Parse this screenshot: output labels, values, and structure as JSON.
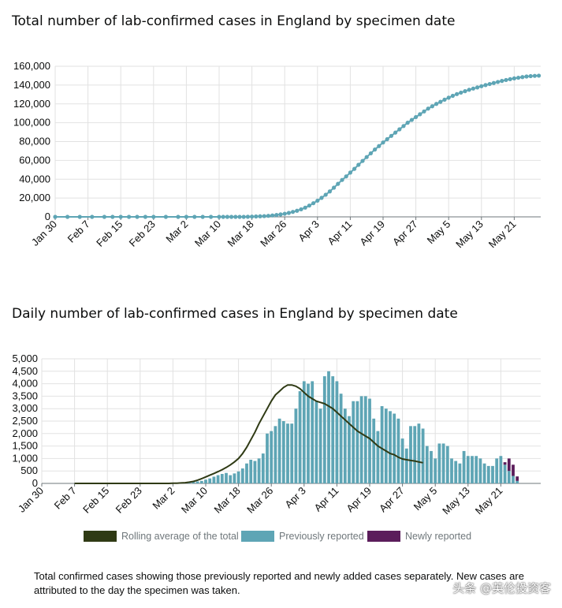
{
  "colors": {
    "line": "#5ea5b5",
    "grid": "#e2e2e2",
    "axis": "#6f777b",
    "previously": "#5ea5b5",
    "newly": "#5b1d5b",
    "rolling": "#2f3a14"
  },
  "chart_data": [
    {
      "type": "line",
      "title": "Total number of lab-confirmed cases in England by specimen date",
      "x_start": "Jan 30",
      "x_tick_labels": [
        "Jan 30",
        "Feb 7",
        "Feb 15",
        "Feb 23",
        "Mar 2",
        "Mar 10",
        "Mar 18",
        "Mar 26",
        "Apr 3",
        "Apr 11",
        "Apr 19",
        "Apr 27",
        "May 5",
        "May 13",
        "May 21"
      ],
      "y_tick_labels": [
        "0",
        "20,000",
        "40,000",
        "60,000",
        "80,000",
        "100,000",
        "120,000",
        "140,000",
        "160,000"
      ],
      "ylim": [
        0,
        160000
      ],
      "day_offsets": [
        0,
        3,
        6,
        9,
        12,
        14,
        16,
        18,
        20,
        22,
        24,
        27,
        30,
        32,
        34,
        36,
        38,
        40,
        41,
        42,
        43,
        44,
        45,
        46,
        47,
        48,
        49,
        50,
        51,
        52,
        53,
        54,
        55,
        56,
        57,
        58,
        59,
        60,
        61,
        62,
        63,
        64,
        65,
        66,
        67,
        68,
        69,
        70,
        71,
        72,
        73,
        74,
        75,
        76,
        77,
        78,
        79,
        80,
        81,
        82,
        83,
        84,
        85,
        86,
        87,
        88,
        89,
        90,
        91,
        92,
        93,
        94,
        95,
        96,
        97,
        98,
        99,
        100,
        101,
        102,
        103,
        104,
        105,
        106,
        107,
        108,
        109,
        110,
        111,
        112,
        113,
        114,
        115,
        116,
        117,
        118
      ],
      "values": [
        0,
        0,
        0,
        0,
        0,
        0,
        0,
        0,
        0,
        0,
        0,
        0,
        0,
        0,
        0,
        0,
        0,
        0,
        0,
        0,
        0,
        0,
        0,
        0,
        100,
        250,
        400,
        600,
        800,
        1100,
        1500,
        2000,
        2600,
        3300,
        4200,
        5300,
        6500,
        8000,
        9800,
        12000,
        14500,
        17200,
        20200,
        23500,
        27000,
        31000,
        35100,
        39200,
        43000,
        47000,
        51000,
        55300,
        59400,
        63500,
        67500,
        71500,
        75200,
        79000,
        82500,
        86000,
        89500,
        93000,
        96500,
        100000,
        103000,
        106000,
        109000,
        112000,
        115000,
        117500,
        120000,
        122200,
        124500,
        126600,
        128600,
        130400,
        132000,
        133500,
        135000,
        136300,
        137500,
        138800,
        140000,
        141100,
        142200,
        143300,
        144400,
        145400,
        146300,
        147100,
        147800,
        148500,
        149100,
        149500,
        149800,
        150000
      ]
    },
    {
      "type": "bar",
      "title": "Daily number of lab-confirmed cases in England by specimen date",
      "x_start": "Jan 30",
      "x_tick_labels": [
        "Jan 30",
        "Feb 7",
        "Feb 15",
        "Feb 23",
        "Mar 2",
        "Mar 10",
        "Mar 18",
        "Mar 26",
        "Apr 3",
        "Apr 11",
        "Apr 19",
        "Apr 27",
        "May 5",
        "May 13",
        "May 21"
      ],
      "y_tick_labels": [
        "0",
        "500",
        "1,000",
        "1,500",
        "2,000",
        "2,500",
        "3,000",
        "3,500",
        "4,000",
        "4,500",
        "5,000"
      ],
      "ylim": [
        0,
        5000
      ],
      "bar_start_day": 34,
      "series": [
        {
          "name": "Previously reported",
          "values": [
            20,
            30,
            50,
            60,
            80,
            100,
            150,
            200,
            270,
            330,
            380,
            420,
            330,
            400,
            480,
            600,
            800,
            950,
            900,
            1000,
            1200,
            2000,
            2100,
            2300,
            2600,
            2500,
            2400,
            2400,
            3000,
            3700,
            4100,
            4000,
            4100,
            3300,
            3000,
            4300,
            4500,
            4300,
            4100,
            3600,
            3000,
            2700,
            3300,
            3300,
            3500,
            3500,
            3400,
            2600,
            2100,
            3100,
            3000,
            2900,
            2800,
            2600,
            1800,
            1400,
            2300,
            2300,
            2400,
            2200,
            1500,
            1300,
            1000,
            1600,
            1600,
            1500,
            1000,
            900,
            800,
            1300,
            1100,
            1100,
            1100,
            1000,
            800,
            700,
            700,
            1000,
            1100,
            750,
            500,
            300,
            100
          ],
          "new": [
            0,
            0,
            0,
            0,
            0,
            0,
            0,
            0,
            0,
            0,
            0,
            0,
            0,
            0,
            0,
            0,
            0,
            0,
            0,
            0,
            0,
            0,
            0,
            0,
            0,
            0,
            0,
            0,
            0,
            0,
            0,
            0,
            0,
            0,
            0,
            0,
            0,
            0,
            0,
            0,
            0,
            0,
            0,
            0,
            0,
            0,
            0,
            0,
            0,
            0,
            0,
            0,
            0,
            0,
            0,
            0,
            0,
            0,
            0,
            0,
            0,
            0,
            0,
            0,
            0,
            0,
            0,
            0,
            0,
            0,
            0,
            0,
            0,
            0,
            0,
            0,
            0,
            0,
            0,
            100,
            500,
            450,
            180
          ]
        },
        {
          "name": "Rolling average of the total",
          "start_day": 8,
          "values": [
            0,
            0,
            0,
            0,
            0,
            0,
            0,
            0,
            0,
            0,
            0,
            0,
            0,
            0,
            0,
            0,
            0,
            0,
            0,
            0,
            0,
            0,
            0,
            0,
            5,
            10,
            20,
            30,
            50,
            80,
            130,
            190,
            260,
            330,
            400,
            470,
            550,
            640,
            740,
            860,
            1000,
            1200,
            1450,
            1750,
            2050,
            2400,
            2700,
            3000,
            3300,
            3550,
            3700,
            3850,
            3950,
            3950,
            3900,
            3800,
            3650,
            3500,
            3400,
            3300,
            3250,
            3200,
            3100,
            3000,
            2850,
            2700,
            2550,
            2400,
            2250,
            2100,
            2000,
            1900,
            1800,
            1650,
            1500,
            1400,
            1300,
            1200,
            1150,
            1050,
            980,
            950,
            920,
            900,
            860,
            830
          ]
        }
      ]
    }
  ],
  "legend": {
    "rolling": "Rolling average of the total",
    "previously": "Previously reported",
    "newly": "Newly reported"
  },
  "caption": "Total confirmed cases showing those previously reported and newly added cases separately. New cases are attributed to the day the specimen was taken.",
  "watermark": "头条 @英伦投资客"
}
